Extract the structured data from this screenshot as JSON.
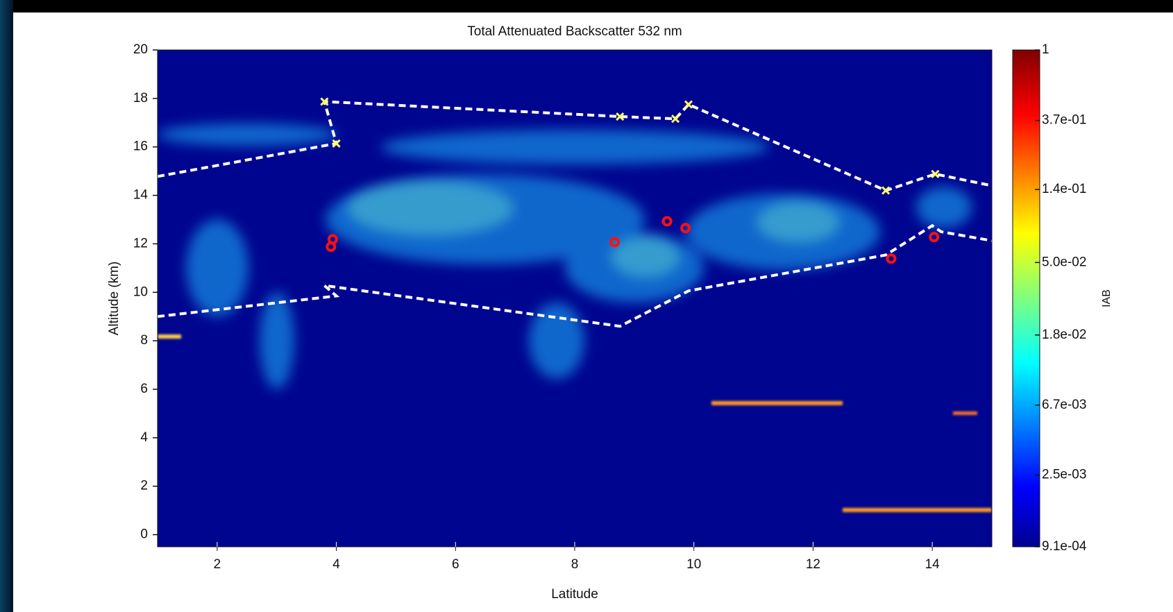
{
  "chart_data": {
    "type": "line",
    "title": "Total Attenuated Backscatter 532 nm",
    "x_label": "Latitude",
    "y_label": "Altitude (km)",
    "xlim": [
      1,
      15
    ],
    "ylim": [
      -0.5,
      20
    ],
    "xticks": [
      2,
      4,
      6,
      8,
      10,
      12,
      14
    ],
    "yticks": [
      0,
      2,
      4,
      6,
      8,
      10,
      12,
      14,
      16,
      18,
      20
    ],
    "background": "#00058f",
    "series": [
      {
        "color": "#ffffff",
        "style": "dashed",
        "marker": "none",
        "x": [
          1.0,
          4.0,
          3.8,
          8.76,
          9.69,
          9.91,
          13.22,
          14.05,
          15.0
        ],
        "values": [
          14.78,
          16.14,
          17.87,
          17.25,
          17.16,
          17.75,
          14.2,
          14.88,
          14.4
        ]
      },
      {
        "color": "#ffffff",
        "style": "dashed",
        "marker": "none",
        "x": [
          1.0,
          4.0,
          3.8,
          8.76,
          9.91,
          13.22,
          14.0,
          14.15,
          15.0
        ],
        "values": [
          9.0,
          9.85,
          10.28,
          8.6,
          10.06,
          11.54,
          12.75,
          12.5,
          12.13
        ]
      },
      {
        "color": "#ffff66",
        "style": "none",
        "marker": "x",
        "x": [
          3.8,
          4.0,
          8.76,
          9.69,
          9.91,
          13.22,
          14.05
        ],
        "values": [
          17.87,
          16.14,
          17.25,
          17.16,
          17.75,
          14.2,
          14.88
        ]
      },
      {
        "color": "#ff1010",
        "style": "none",
        "marker": "circle",
        "x": [
          3.94,
          3.91,
          8.67,
          9.55,
          9.86,
          13.31,
          14.03
        ],
        "values": [
          12.19,
          11.88,
          12.07,
          12.93,
          12.65,
          11.39,
          12.28
        ]
      }
    ],
    "colorbar": {
      "label": "IAB",
      "scale": "log",
      "lim": [
        0.00091,
        1
      ],
      "ticks": [
        {
          "value": 1,
          "label": "1"
        },
        {
          "value": 0.37,
          "label": "3.7e-01"
        },
        {
          "value": 0.14,
          "label": "1.4e-01"
        },
        {
          "value": 0.05,
          "label": "5.0e-02"
        },
        {
          "value": 0.018,
          "label": "1.8e-02"
        },
        {
          "value": 0.0067,
          "label": "6.7e-03"
        },
        {
          "value": 0.0025,
          "label": "2.5e-03"
        },
        {
          "value": 0.00091,
          "label": "9.1e-04"
        }
      ]
    }
  }
}
